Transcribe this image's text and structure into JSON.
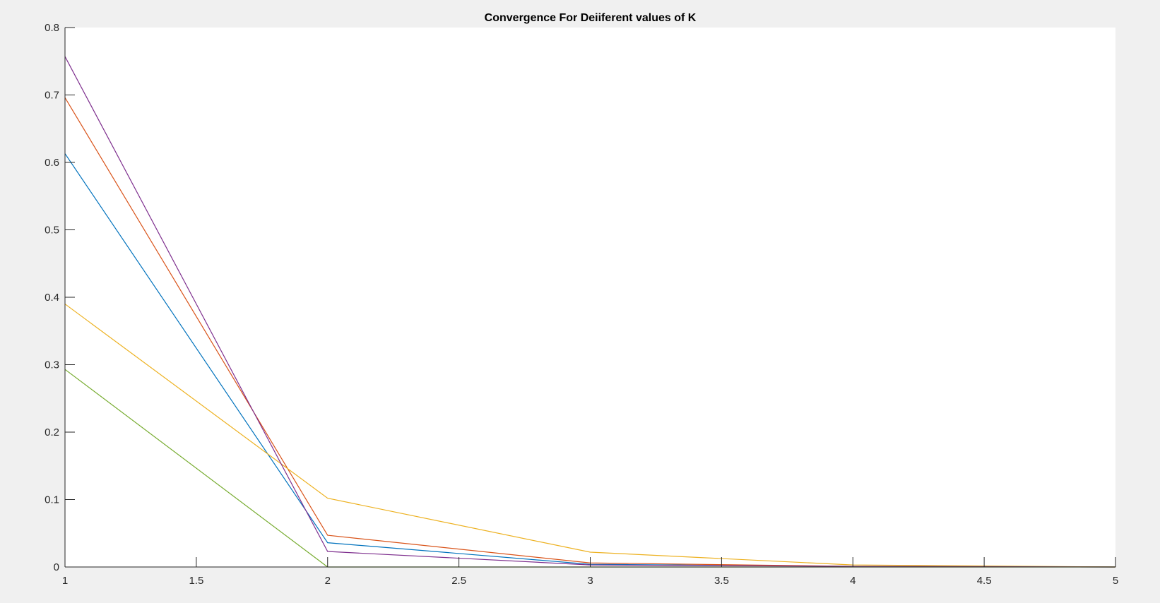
{
  "chart_data": {
    "type": "line",
    "title": "Convergence For Deiiferent values of K",
    "xlabel": "",
    "ylabel": "",
    "x": [
      1,
      2,
      3,
      4,
      5
    ],
    "xlim": [
      1,
      5
    ],
    "ylim": [
      0,
      0.8
    ],
    "xticks": [
      1,
      1.5,
      2,
      2.5,
      3,
      3.5,
      4,
      4.5,
      5
    ],
    "xtick_labels": [
      "1",
      "1.5",
      "2",
      "2.5",
      "3",
      "3.5",
      "4",
      "4.5",
      "5"
    ],
    "yticks": [
      0,
      0.1,
      0.2,
      0.3,
      0.4,
      0.5,
      0.6,
      0.7,
      0.8
    ],
    "ytick_labels": [
      "0",
      "0.1",
      "0.2",
      "0.3",
      "0.4",
      "0.5",
      "0.6",
      "0.7",
      "0.8"
    ],
    "grid": false,
    "legend": "none",
    "series": [
      {
        "color": "#0072BD",
        "values": [
          0.613,
          0.036,
          0.004,
          0.001,
          0.0
        ]
      },
      {
        "color": "#D95319",
        "values": [
          0.696,
          0.047,
          0.006,
          0.001,
          0.0
        ]
      },
      {
        "color": "#EDB120",
        "values": [
          0.39,
          0.102,
          0.022,
          0.003,
          0.0
        ]
      },
      {
        "color": "#7E2F8E",
        "values": [
          0.757,
          0.023,
          0.003,
          0.001,
          0.0
        ]
      },
      {
        "color": "#77AC30",
        "values": [
          0.293,
          0.0,
          0.0,
          0.0,
          0.0
        ]
      }
    ]
  }
}
